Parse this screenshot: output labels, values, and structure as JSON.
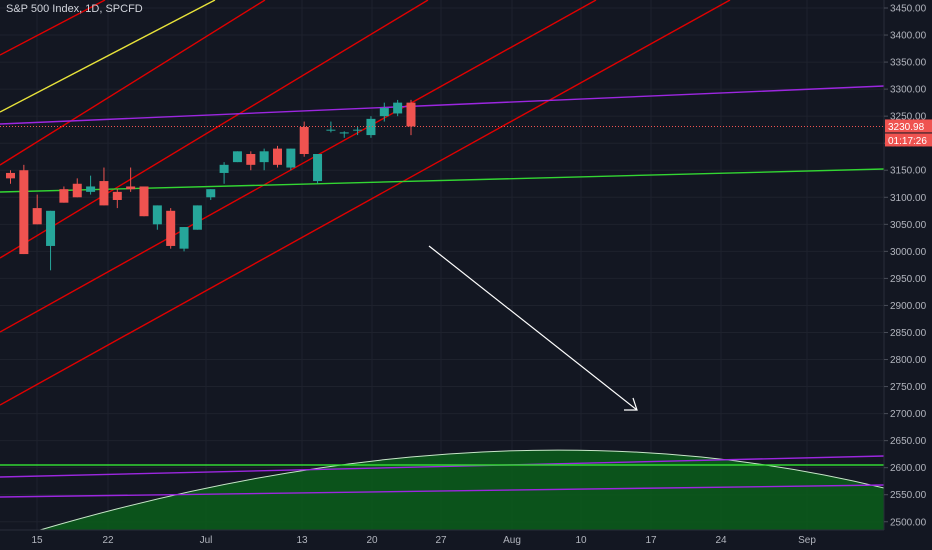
{
  "header": {
    "title": "S&P 500 Index, 1D, SPCFD"
  },
  "price_axis": {
    "current_price_label": "3230.98",
    "countdown_label": "01:17:26"
  },
  "colors": {
    "background": "#131722",
    "grid": "#1e222d",
    "up": "#26a69a",
    "down": "#ef5350",
    "channel": "#e00000",
    "yellow_line": "#e8e23a",
    "purple_line": "#9c27e0",
    "green_line": "#33d633",
    "arrow": "#ffffff",
    "projection_fill": "#0b5e1a"
  },
  "chart_data": {
    "type": "candlestick",
    "title": "S&P 500 Index, 1D, SPCFD",
    "xlabel": "",
    "ylabel": "",
    "ylim": [
      2490,
      3470
    ],
    "y_ticks": [
      2500,
      2550,
      2600,
      2650,
      2700,
      2750,
      2800,
      2850,
      2900,
      2950,
      3000,
      3050,
      3100,
      3150,
      3200,
      3250,
      3300,
      3350,
      3400,
      3450
    ],
    "x_ticks": [
      "15",
      "22",
      "Jul",
      "13",
      "20",
      "27",
      "Aug",
      "10",
      "17",
      "24",
      "Sep"
    ],
    "last_price": 3230.98,
    "candles": [
      {
        "o": 3145,
        "h": 3150,
        "l": 3125,
        "c": 3135
      },
      {
        "o": 3150,
        "h": 3160,
        "l": 2995,
        "c": 2995
      },
      {
        "o": 3080,
        "h": 3105,
        "l": 3050,
        "c": 3050
      },
      {
        "o": 3010,
        "h": 3075,
        "l": 2965,
        "c": 3075
      },
      {
        "o": 3115,
        "h": 3120,
        "l": 3090,
        "c": 3090
      },
      {
        "o": 3125,
        "h": 3135,
        "l": 3100,
        "c": 3100
      },
      {
        "o": 3110,
        "h": 3140,
        "l": 3105,
        "c": 3120
      },
      {
        "o": 3130,
        "h": 3155,
        "l": 3085,
        "c": 3085
      },
      {
        "o": 3110,
        "h": 3115,
        "l": 3080,
        "c": 3095
      },
      {
        "o": 3120,
        "h": 3155,
        "l": 3110,
        "c": 3115
      },
      {
        "o": 3120,
        "h": 3120,
        "l": 3065,
        "c": 3065
      },
      {
        "o": 3050,
        "h": 3085,
        "l": 3040,
        "c": 3085
      },
      {
        "o": 3075,
        "h": 3080,
        "l": 3005,
        "c": 3010
      },
      {
        "o": 3005,
        "h": 3045,
        "l": 3000,
        "c": 3045
      },
      {
        "o": 3040,
        "h": 3085,
        "l": 3040,
        "c": 3085
      },
      {
        "o": 3100,
        "h": 3115,
        "l": 3095,
        "c": 3115
      },
      {
        "o": 3145,
        "h": 3165,
        "l": 3125,
        "c": 3160
      },
      {
        "o": 3165,
        "h": 3185,
        "l": 3165,
        "c": 3185
      },
      {
        "o": 3180,
        "h": 3185,
        "l": 3150,
        "c": 3160
      },
      {
        "o": 3165,
        "h": 3190,
        "l": 3150,
        "c": 3185
      },
      {
        "o": 3190,
        "h": 3195,
        "l": 3155,
        "c": 3160
      },
      {
        "o": 3155,
        "h": 3190,
        "l": 3150,
        "c": 3190
      },
      {
        "o": 3230,
        "h": 3240,
        "l": 3175,
        "c": 3180
      },
      {
        "o": 3130,
        "h": 3175,
        "l": 3125,
        "c": 3180
      },
      {
        "o": 3225,
        "h": 3240,
        "l": 3220,
        "c": 3225
      },
      {
        "o": 3218,
        "h": 3222,
        "l": 3210,
        "c": 3220
      },
      {
        "o": 3224,
        "h": 3230,
        "l": 3215,
        "c": 3225
      },
      {
        "o": 3215,
        "h": 3250,
        "l": 3210,
        "c": 3245
      },
      {
        "o": 3250,
        "h": 3275,
        "l": 3240,
        "c": 3265
      },
      {
        "o": 3255,
        "h": 3280,
        "l": 3250,
        "c": 3275
      },
      {
        "o": 3275,
        "h": 3280,
        "l": 3215,
        "c": 3231
      }
    ],
    "drawings": {
      "red_channel_lines": 7,
      "yellow_trendline": 1,
      "purple_trendlines": 3,
      "green_horizontal_lines": 2,
      "arrow": "down-right",
      "projection": "green dome"
    }
  }
}
